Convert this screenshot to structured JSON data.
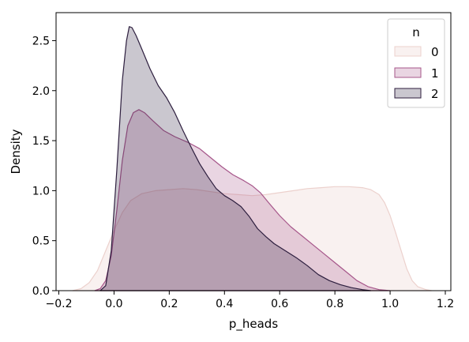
{
  "chart_data": {
    "type": "area",
    "title": "",
    "xlabel": "p_heads",
    "ylabel": "Density",
    "xlim": [
      -0.21,
      1.22
    ],
    "ylim": [
      0,
      2.78
    ],
    "x_ticks": [
      "−0.2",
      "0.0",
      "0.2",
      "0.4",
      "0.6",
      "0.8",
      "1.0",
      "1.2"
    ],
    "x_tick_values": [
      -0.2,
      0.0,
      0.2,
      0.4,
      0.6,
      0.8,
      1.0,
      1.2
    ],
    "y_ticks": [
      "0.0",
      "0.5",
      "1.0",
      "1.5",
      "2.0",
      "2.5"
    ],
    "y_tick_values": [
      0.0,
      0.5,
      1.0,
      1.5,
      2.0,
      2.5
    ],
    "grid": false,
    "legend": {
      "title": "n",
      "placement": "top-right"
    },
    "series": [
      {
        "name": "0",
        "color": "#ecd1cd",
        "fill_opacity": 0.3,
        "points": [
          [
            -0.15,
            0.0
          ],
          [
            -0.12,
            0.02
          ],
          [
            -0.09,
            0.08
          ],
          [
            -0.06,
            0.2
          ],
          [
            -0.03,
            0.4
          ],
          [
            0.0,
            0.6
          ],
          [
            0.03,
            0.78
          ],
          [
            0.06,
            0.9
          ],
          [
            0.1,
            0.97
          ],
          [
            0.15,
            1.0
          ],
          [
            0.2,
            1.01
          ],
          [
            0.25,
            1.02
          ],
          [
            0.3,
            1.01
          ],
          [
            0.35,
            0.99
          ],
          [
            0.4,
            0.97
          ],
          [
            0.45,
            0.96
          ],
          [
            0.5,
            0.95
          ],
          [
            0.55,
            0.96
          ],
          [
            0.6,
            0.98
          ],
          [
            0.65,
            1.0
          ],
          [
            0.7,
            1.02
          ],
          [
            0.75,
            1.03
          ],
          [
            0.8,
            1.04
          ],
          [
            0.85,
            1.04
          ],
          [
            0.9,
            1.03
          ],
          [
            0.93,
            1.01
          ],
          [
            0.96,
            0.96
          ],
          [
            0.98,
            0.88
          ],
          [
            1.0,
            0.75
          ],
          [
            1.02,
            0.58
          ],
          [
            1.04,
            0.4
          ],
          [
            1.06,
            0.22
          ],
          [
            1.08,
            0.1
          ],
          [
            1.1,
            0.04
          ],
          [
            1.13,
            0.01
          ],
          [
            1.15,
            0.0
          ]
        ]
      },
      {
        "name": "1",
        "color": "#a6568a",
        "fill_opacity": 0.25,
        "points": [
          [
            -0.07,
            0.0
          ],
          [
            -0.05,
            0.02
          ],
          [
            -0.03,
            0.1
          ],
          [
            -0.01,
            0.35
          ],
          [
            0.01,
            0.8
          ],
          [
            0.03,
            1.3
          ],
          [
            0.05,
            1.65
          ],
          [
            0.07,
            1.78
          ],
          [
            0.09,
            1.81
          ],
          [
            0.11,
            1.78
          ],
          [
            0.14,
            1.7
          ],
          [
            0.18,
            1.6
          ],
          [
            0.22,
            1.54
          ],
          [
            0.27,
            1.48
          ],
          [
            0.31,
            1.42
          ],
          [
            0.35,
            1.33
          ],
          [
            0.39,
            1.24
          ],
          [
            0.43,
            1.16
          ],
          [
            0.47,
            1.1
          ],
          [
            0.5,
            1.05
          ],
          [
            0.53,
            0.98
          ],
          [
            0.56,
            0.88
          ],
          [
            0.6,
            0.75
          ],
          [
            0.64,
            0.64
          ],
          [
            0.68,
            0.55
          ],
          [
            0.72,
            0.46
          ],
          [
            0.76,
            0.37
          ],
          [
            0.8,
            0.28
          ],
          [
            0.84,
            0.19
          ],
          [
            0.88,
            0.1
          ],
          [
            0.92,
            0.04
          ],
          [
            0.96,
            0.01
          ],
          [
            1.0,
            0.0
          ]
        ]
      },
      {
        "name": "2",
        "color": "#2d1e3e",
        "fill_opacity": 0.25,
        "points": [
          [
            -0.05,
            0.0
          ],
          [
            -0.03,
            0.05
          ],
          [
            -0.01,
            0.4
          ],
          [
            0.01,
            1.2
          ],
          [
            0.03,
            2.1
          ],
          [
            0.045,
            2.5
          ],
          [
            0.055,
            2.64
          ],
          [
            0.065,
            2.63
          ],
          [
            0.08,
            2.55
          ],
          [
            0.1,
            2.42
          ],
          [
            0.13,
            2.22
          ],
          [
            0.16,
            2.05
          ],
          [
            0.19,
            1.93
          ],
          [
            0.22,
            1.78
          ],
          [
            0.25,
            1.6
          ],
          [
            0.28,
            1.43
          ],
          [
            0.31,
            1.27
          ],
          [
            0.34,
            1.14
          ],
          [
            0.37,
            1.02
          ],
          [
            0.4,
            0.95
          ],
          [
            0.43,
            0.9
          ],
          [
            0.46,
            0.84
          ],
          [
            0.49,
            0.74
          ],
          [
            0.52,
            0.62
          ],
          [
            0.55,
            0.54
          ],
          [
            0.58,
            0.47
          ],
          [
            0.62,
            0.4
          ],
          [
            0.66,
            0.33
          ],
          [
            0.7,
            0.25
          ],
          [
            0.74,
            0.16
          ],
          [
            0.78,
            0.1
          ],
          [
            0.82,
            0.06
          ],
          [
            0.86,
            0.03
          ],
          [
            0.9,
            0.01
          ],
          [
            0.93,
            0.0
          ]
        ]
      }
    ]
  }
}
